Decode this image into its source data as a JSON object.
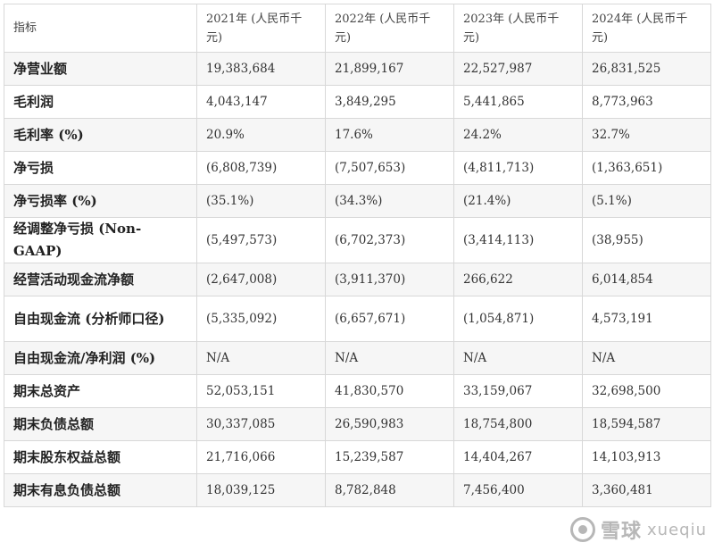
{
  "table": {
    "headers": [
      "指标",
      "2021年 (人民币千元)",
      "2022年 (人民币千元)",
      "2023年 (人民币千元)",
      "2024年 (人民币千元)"
    ],
    "rows": [
      {
        "label": "净营业额",
        "values": [
          "19,383,684",
          "21,899,167",
          "22,527,987",
          "26,831,525"
        ]
      },
      {
        "label": "毛利润",
        "values": [
          "4,043,147",
          "3,849,295",
          "5,441,865",
          "8,773,963"
        ]
      },
      {
        "label": "毛利率 (%)",
        "values": [
          "20.9%",
          "17.6%",
          "24.2%",
          "32.7%"
        ]
      },
      {
        "label": "净亏损",
        "values": [
          "(6,808,739)",
          "(7,507,653)",
          "(4,811,713)",
          "(1,363,651)"
        ]
      },
      {
        "label": "净亏损率 (%)",
        "values": [
          "(35.1%)",
          "(34.3%)",
          "(21.4%)",
          "(5.1%)"
        ]
      },
      {
        "label": "经调整净亏损 (Non-GAAP)",
        "values": [
          "(5,497,573)",
          "(6,702,373)",
          "(3,414,113)",
          "(38,955)"
        ]
      },
      {
        "label": "经营活动现金流净额",
        "values": [
          "(2,647,008)",
          "(3,911,370)",
          "266,622",
          "6,014,854"
        ]
      },
      {
        "label": "自由现金流 (分析师口径)",
        "values": [
          "(5,335,092)",
          "(6,657,671)",
          "(1,054,871)",
          "4,573,191"
        ]
      },
      {
        "label": "自由现金流/净利润 (%)",
        "values": [
          "N/A",
          "N/A",
          "N/A",
          "N/A"
        ]
      },
      {
        "label": "期末总资产",
        "values": [
          "52,053,151",
          "41,830,570",
          "33,159,067",
          "32,698,500"
        ]
      },
      {
        "label": "期末负债总额",
        "values": [
          "30,337,085",
          "26,590,983",
          "18,754,800",
          "18,594,587"
        ]
      },
      {
        "label": "期末股东权益总额",
        "values": [
          "21,716,066",
          "15,239,587",
          "14,404,267",
          "14,103,913"
        ]
      },
      {
        "label": "期末有息负债总额",
        "values": [
          "18,039,125",
          "8,782,848",
          "7,456,400",
          "3,360,481"
        ]
      }
    ]
  },
  "watermark": {
    "text": "雪球",
    "latin": "xueqiu"
  }
}
